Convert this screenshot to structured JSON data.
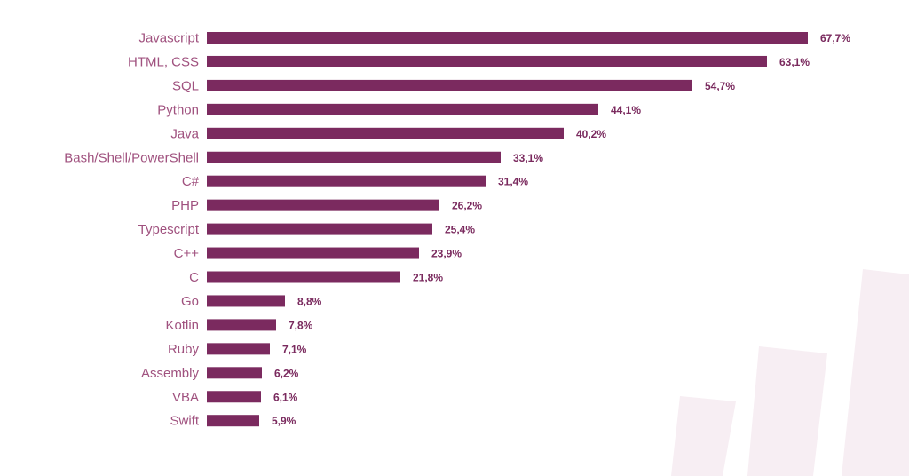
{
  "chart_data": {
    "type": "bar",
    "orientation": "horizontal",
    "categories": [
      "Javascript",
      "HTML, CSS",
      "SQL",
      "Python",
      "Java",
      "Bash/Shell/PowerShell",
      "C#",
      "PHP",
      "Typescript",
      "C++",
      "C",
      "Go",
      "Kotlin",
      "Ruby",
      "Assembly",
      "VBA",
      "Swift"
    ],
    "values": [
      67.7,
      63.1,
      54.7,
      44.1,
      40.2,
      33.1,
      31.4,
      26.2,
      25.4,
      23.9,
      21.8,
      8.8,
      7.8,
      7.1,
      6.2,
      6.1,
      5.9
    ],
    "value_labels": [
      "67,7%",
      "63,1%",
      "54,7%",
      "44,1%",
      "40,2%",
      "33,1%",
      "31,4%",
      "26,2%",
      "25,4%",
      "23,9%",
      "21,8%",
      "8,8%",
      "7,8%",
      "7,1%",
      "6,2%",
      "6,1%",
      "5,9%"
    ],
    "unit": "%",
    "xlim": [
      0,
      67.7
    ],
    "grid": false,
    "legend": "none"
  },
  "colors": {
    "bar": "#7b2a5f",
    "category_label": "#a0527f",
    "value_label": "#7a2a5e",
    "decor_bars": "#f7eef3"
  }
}
